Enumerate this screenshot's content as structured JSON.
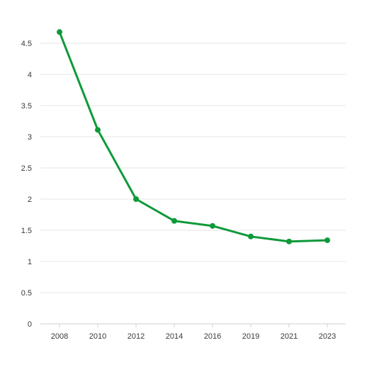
{
  "chart_data": {
    "type": "line",
    "title": "",
    "xlabel": "",
    "ylabel": "",
    "x": [
      "2008",
      "2010",
      "2012",
      "2014",
      "2016",
      "2019",
      "2021",
      "2023"
    ],
    "series": [
      {
        "values": [
          4.68,
          3.11,
          2.0,
          1.65,
          1.57,
          1.4,
          1.32,
          1.34
        ],
        "color": "#0e9a3a"
      }
    ],
    "ylim": [
      0,
      4.5
    ],
    "yticks": [
      "0",
      "0.5",
      "1",
      "1.5",
      "2",
      "2.5",
      "3",
      "3.5",
      "4",
      "4.5"
    ],
    "grid": true,
    "legend": "none"
  }
}
